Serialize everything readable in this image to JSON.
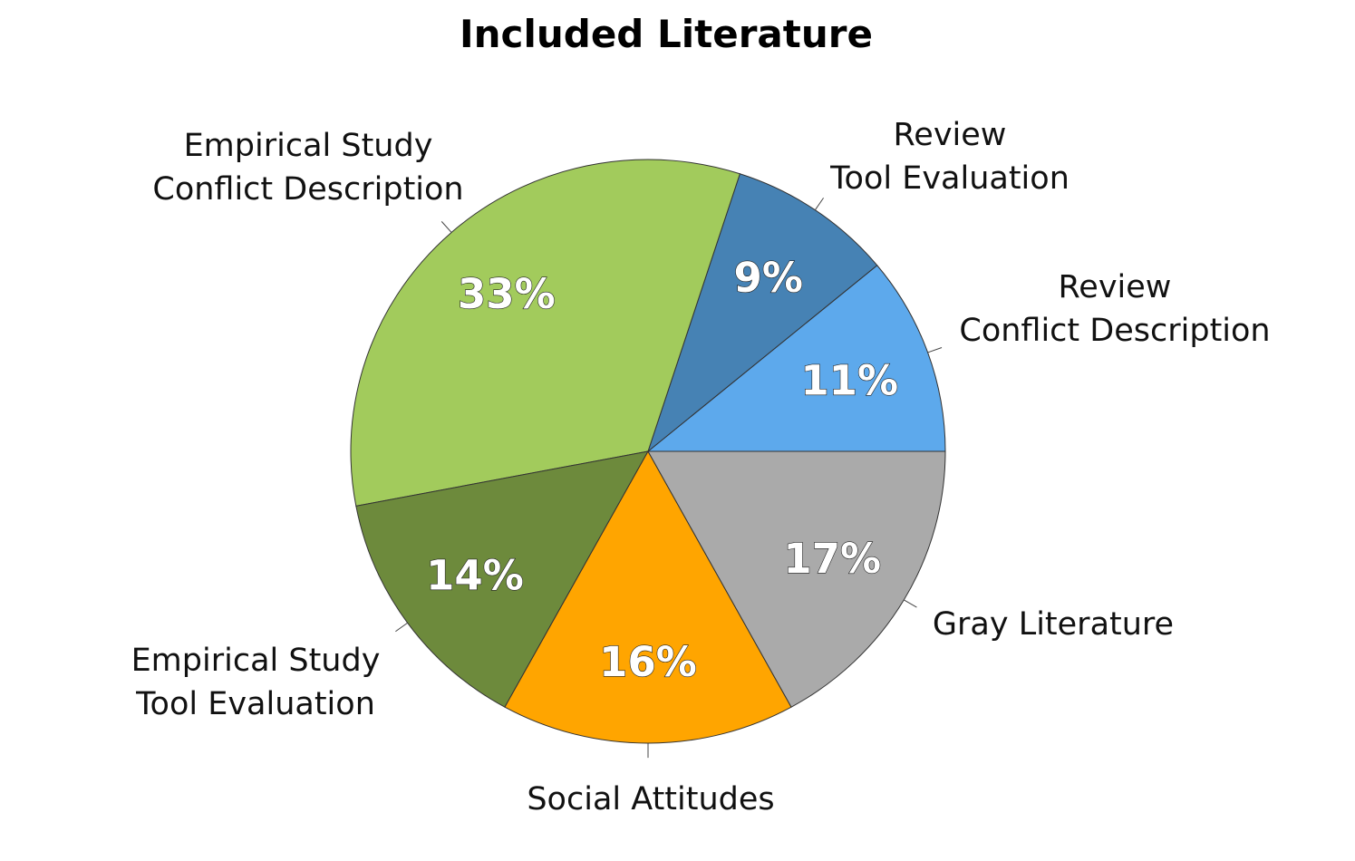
{
  "chart_data": {
    "type": "pie",
    "title": "Included Literature",
    "start_angle_deg": 0,
    "direction": "counterclockwise",
    "slices": [
      {
        "name": "Review\nConflict Description",
        "value": 11,
        "label": "11%",
        "color": "#5DA9EC"
      },
      {
        "name": "Review\nTool Evaluation",
        "value": 9,
        "label": "9%",
        "color": "#4682B4"
      },
      {
        "name": "Empirical Study\nConflict Description",
        "value": 33,
        "label": "33%",
        "color": "#A2CB5C"
      },
      {
        "name": "Empirical Study\nTool Evaluation",
        "value": 14,
        "label": "14%",
        "color": "#6D8A3C"
      },
      {
        "name": "Social Attitudes",
        "value": 16,
        "label": "16%",
        "color": "#FFA500"
      },
      {
        "name": "Gray Literature",
        "value": 17,
        "label": "17%",
        "color": "#AAAAAA"
      }
    ]
  }
}
